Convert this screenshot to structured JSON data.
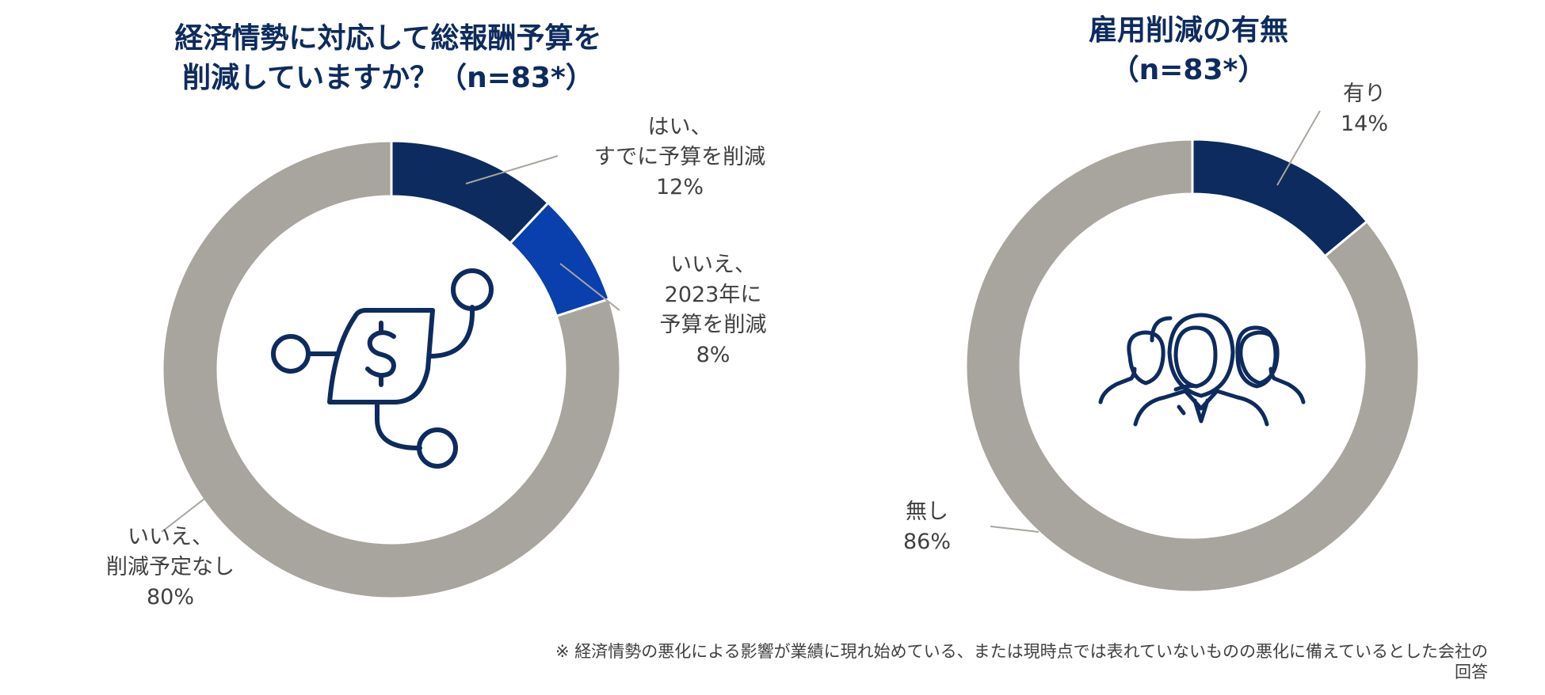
{
  "colors": {
    "navy": "#0d2b5e",
    "blue": "#0a3fae",
    "gray": "#a8a59e",
    "text": "#404040",
    "title": "#0d2b5e"
  },
  "icons": {
    "left": "dollar-network-icon",
    "right": "people-group-icon"
  },
  "chart_data": [
    {
      "type": "donut",
      "title_lines": [
        "経済情勢に対応して総報酬予算を",
        "削減していますか？（n=83*）"
      ],
      "slices": [
        {
          "label_lines": [
            "はい、",
            "すでに予算を削減",
            "12%"
          ],
          "value": 12,
          "color": "#0d2b5e"
        },
        {
          "label_lines": [
            "いいえ、",
            "2023年に",
            "予算を削減",
            "8%"
          ],
          "value": 8,
          "color": "#0a3fae"
        },
        {
          "label_lines": [
            "いいえ、",
            "削減予定なし",
            "80%"
          ],
          "value": 80,
          "color": "#a8a59e"
        }
      ]
    },
    {
      "type": "donut",
      "title_lines": [
        "雇用削減の有無",
        "（n=83*）"
      ],
      "slices": [
        {
          "label_lines": [
            "有り",
            "14%"
          ],
          "value": 14,
          "color": "#0d2b5e"
        },
        {
          "label_lines": [
            "無し",
            "86%"
          ],
          "value": 86,
          "color": "#a8a59e"
        }
      ]
    }
  ],
  "footnote_lines": [
    "※ 経済情勢の悪化による影響が業績に現れ始めている、または現時点では表れていないものの悪化に備えているとした会社の",
    "回答"
  ]
}
